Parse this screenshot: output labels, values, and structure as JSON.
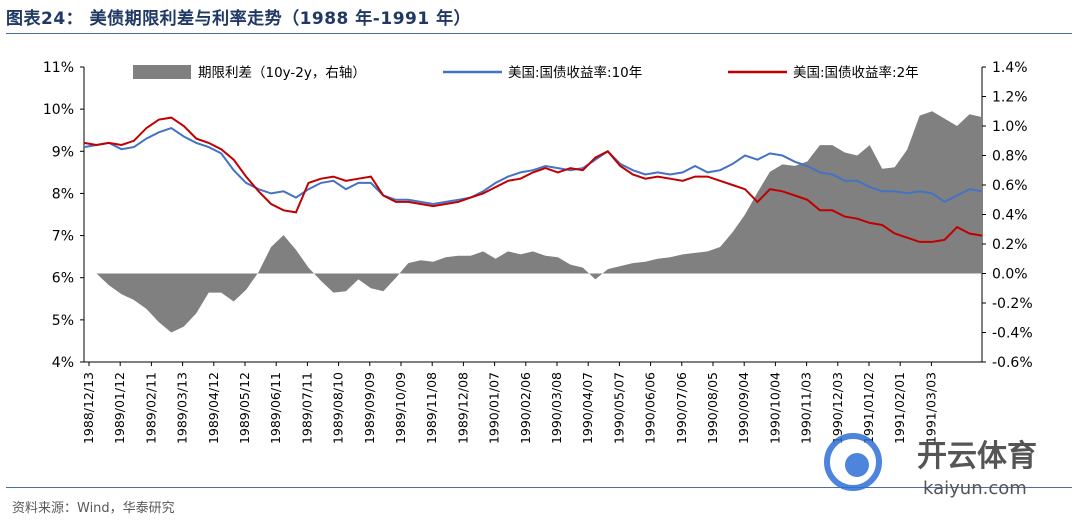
{
  "header": {
    "title": "图表24：  美债期限利差与利率走势（1988 年-1991 年）"
  },
  "footer": {
    "source": "资料来源：Wind，华泰研究"
  },
  "watermark": {
    "brand": "开云体育",
    "domain": "kaiyun.com"
  },
  "colors": {
    "spread": "#808080",
    "ten_year": "#4472c4",
    "two_year": "#c00000"
  },
  "chart_data": {
    "type": "line",
    "title": "",
    "xlabel": "",
    "ylabel": "",
    "ylim": [
      4,
      11
    ],
    "y2lim": [
      -0.6,
      1.4
    ],
    "y_ticks": [
      "4%",
      "5%",
      "6%",
      "7%",
      "8%",
      "9%",
      "10%",
      "11%"
    ],
    "y2_ticks": [
      "-0.6%",
      "-0.4%",
      "-0.2%",
      "0.0%",
      "0.2%",
      "0.4%",
      "0.6%",
      "0.8%",
      "1.0%",
      "1.2%",
      "1.4%"
    ],
    "x_ticks": [
      "1988/12/13",
      "1989/01/12",
      "1989/02/11",
      "1989/03/13",
      "1989/04/12",
      "1989/05/12",
      "1989/06/11",
      "1989/07/11",
      "1989/08/10",
      "1989/09/09",
      "1989/10/09",
      "1989/11/08",
      "1989/12/08",
      "1990/01/07",
      "1990/02/06",
      "1990/03/08",
      "1990/04/07",
      "1990/05/07",
      "1990/06/06",
      "1990/07/06",
      "1990/08/05",
      "1990/09/04",
      "1990/10/04",
      "1990/11/03",
      "1990/12/03",
      "1991/01/02",
      "1991/02/01",
      "1991/03/03"
    ],
    "legend_position": "top",
    "series": [
      {
        "name": "期限利差（10y-2y，右轴）",
        "type": "area",
        "axis": "right",
        "values": [
          0.0,
          0.0,
          -0.08,
          -0.14,
          -0.18,
          -0.24,
          -0.33,
          -0.4,
          -0.36,
          -0.27,
          -0.13,
          -0.13,
          -0.19,
          -0.11,
          0.01,
          0.18,
          0.26,
          0.16,
          0.04,
          -0.05,
          -0.13,
          -0.12,
          -0.04,
          -0.1,
          -0.12,
          -0.03,
          0.07,
          0.09,
          0.08,
          0.11,
          0.12,
          0.12,
          0.15,
          0.1,
          0.15,
          0.13,
          0.15,
          0.12,
          0.11,
          0.06,
          0.04,
          -0.04,
          0.03,
          0.05,
          0.07,
          0.08,
          0.1,
          0.11,
          0.13,
          0.14,
          0.15,
          0.18,
          0.28,
          0.4,
          0.55,
          0.69,
          0.74,
          0.73,
          0.76,
          0.87,
          0.87,
          0.82,
          0.8,
          0.87,
          0.71,
          0.72,
          0.84,
          1.07,
          1.1,
          1.05,
          1.0,
          1.08,
          1.06
        ]
      },
      {
        "name": "美国:国债收益率:10年",
        "type": "line",
        "axis": "left",
        "values": [
          9.1,
          9.15,
          9.2,
          9.05,
          9.1,
          9.3,
          9.45,
          9.55,
          9.35,
          9.2,
          9.1,
          8.95,
          8.55,
          8.25,
          8.1,
          8.0,
          8.05,
          7.9,
          8.1,
          8.25,
          8.3,
          8.1,
          8.25,
          8.25,
          7.95,
          7.85,
          7.85,
          7.8,
          7.75,
          7.8,
          7.85,
          7.9,
          8.05,
          8.25,
          8.4,
          8.5,
          8.55,
          8.65,
          8.6,
          8.55,
          8.6,
          8.8,
          9.0,
          8.7,
          8.55,
          8.45,
          8.5,
          8.45,
          8.5,
          8.65,
          8.5,
          8.55,
          8.7,
          8.9,
          8.8,
          8.95,
          8.9,
          8.75,
          8.65,
          8.5,
          8.45,
          8.3,
          8.3,
          8.15,
          8.05,
          8.05,
          8.0,
          8.05,
          8.0,
          7.8,
          7.95,
          8.1,
          8.05
        ]
      },
      {
        "name": "美国:国债收益率:2年",
        "type": "line",
        "axis": "left",
        "values": [
          9.2,
          9.15,
          9.2,
          9.15,
          9.25,
          9.55,
          9.75,
          9.8,
          9.6,
          9.3,
          9.2,
          9.05,
          8.8,
          8.4,
          8.05,
          7.75,
          7.6,
          7.55,
          8.25,
          8.35,
          8.4,
          8.3,
          8.35,
          8.4,
          7.95,
          7.8,
          7.8,
          7.75,
          7.7,
          7.75,
          7.8,
          7.9,
          8.0,
          8.15,
          8.3,
          8.35,
          8.5,
          8.6,
          8.5,
          8.6,
          8.55,
          8.85,
          9.0,
          8.65,
          8.45,
          8.35,
          8.4,
          8.35,
          8.3,
          8.4,
          8.4,
          8.3,
          8.2,
          8.1,
          7.8,
          8.1,
          8.05,
          7.95,
          7.85,
          7.6,
          7.6,
          7.45,
          7.4,
          7.3,
          7.25,
          7.05,
          6.95,
          6.85,
          6.85,
          6.9,
          7.2,
          7.05,
          7.0
        ]
      }
    ]
  }
}
